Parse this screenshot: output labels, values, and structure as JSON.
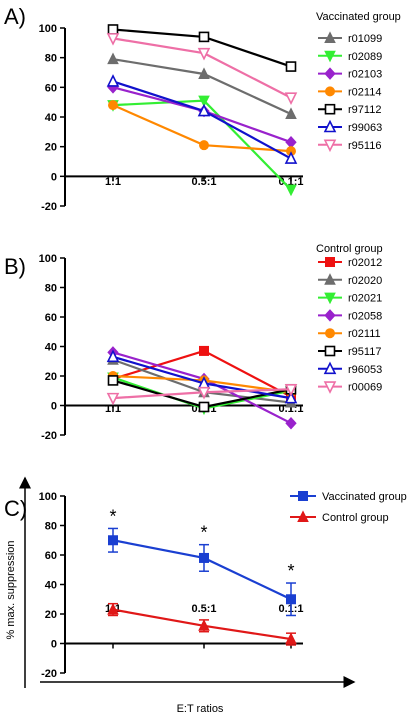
{
  "panels": {
    "a": {
      "label": "A)"
    },
    "b": {
      "label": "B)"
    },
    "c": {
      "label": "C)"
    }
  },
  "chart_data": [
    {
      "type": "line",
      "panel": "A)",
      "legend_title": "Vaccinated group",
      "categories": [
        "1:1",
        "0.5:1",
        "0.1:1"
      ],
      "ylim": [
        -20,
        100
      ],
      "yticks": [
        -20,
        0,
        20,
        40,
        60,
        80,
        100
      ],
      "series": [
        {
          "name": "r01099",
          "values": [
            79,
            69,
            42
          ],
          "color": "#6d6d6d",
          "marker": "triangle-up"
        },
        {
          "name": "r02089",
          "values": [
            48,
            51,
            -9
          ],
          "color": "#33ee33",
          "marker": "triangle-down"
        },
        {
          "name": "r02103",
          "values": [
            60,
            44,
            23
          ],
          "color": "#9922cc",
          "marker": "diamond"
        },
        {
          "name": "r02114",
          "values": [
            48,
            21,
            17
          ],
          "color": "#ff8800",
          "marker": "circle"
        },
        {
          "name": "r97112",
          "values": [
            99,
            94,
            74
          ],
          "color": "#000000",
          "marker": "square-open"
        },
        {
          "name": "r99063",
          "values": [
            64,
            44,
            12
          ],
          "color": "#1111cc",
          "marker": "triangle-up-open"
        },
        {
          "name": "r95116",
          "values": [
            93,
            83,
            53
          ],
          "color": "#ee6fa6",
          "marker": "triangle-down-open"
        }
      ]
    },
    {
      "type": "line",
      "panel": "B)",
      "legend_title": "Control group",
      "categories": [
        "1:1",
        "0.5:1",
        "0.1:1"
      ],
      "ylim": [
        -20,
        100
      ],
      "yticks": [
        -20,
        0,
        20,
        40,
        60,
        80,
        100
      ],
      "series": [
        {
          "name": "r02012",
          "values": [
            18,
            37,
            6
          ],
          "color": "#ee1111",
          "marker": "square"
        },
        {
          "name": "r02020",
          "values": [
            31,
            9,
            2
          ],
          "color": "#6d6d6d",
          "marker": "triangle-up"
        },
        {
          "name": "r02021",
          "values": [
            19,
            -2,
            10
          ],
          "color": "#33ee33",
          "marker": "triangle-down"
        },
        {
          "name": "r02058",
          "values": [
            36,
            18,
            -12
          ],
          "color": "#9922cc",
          "marker": "diamond"
        },
        {
          "name": "r02111",
          "values": [
            20,
            17,
            9
          ],
          "color": "#ff8800",
          "marker": "circle"
        },
        {
          "name": "r95117",
          "values": [
            17,
            -1,
            11
          ],
          "color": "#000000",
          "marker": "square-open"
        },
        {
          "name": "r96053",
          "values": [
            33,
            15,
            5
          ],
          "color": "#1111cc",
          "marker": "triangle-up-open"
        },
        {
          "name": "r00069",
          "values": [
            5,
            9,
            11
          ],
          "color": "#ee6fa6",
          "marker": "triangle-down-open"
        }
      ]
    },
    {
      "type": "line",
      "panel": "C)",
      "categories": [
        "1:1",
        "0.5:1",
        "0.1:1"
      ],
      "ylim": [
        -20,
        100
      ],
      "yticks": [
        -20,
        0,
        20,
        40,
        60,
        80,
        100
      ],
      "ylabel": "% max. suppression",
      "xlabel": "E:T ratios",
      "annotations": [
        "*",
        "*",
        "*"
      ],
      "series": [
        {
          "name": "Vaccinated group",
          "values": [
            70,
            58,
            30
          ],
          "errors": [
            8,
            9,
            11
          ],
          "color": "#1a3fd1",
          "marker": "square"
        },
        {
          "name": "Control group",
          "values": [
            23,
            12,
            3
          ],
          "errors": [
            4,
            4,
            4
          ],
          "color": "#e01818",
          "marker": "triangle-up"
        }
      ]
    }
  ]
}
